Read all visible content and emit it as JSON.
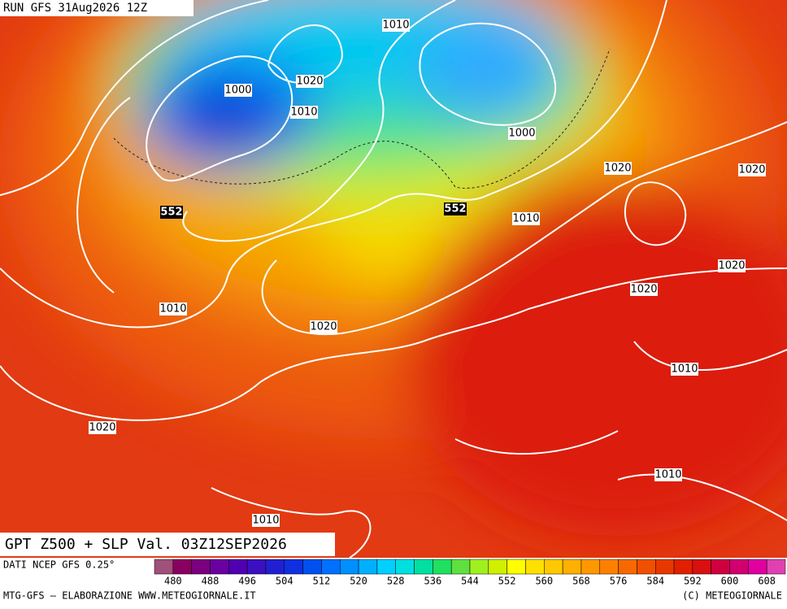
{
  "header": {
    "run": "RUN GFS 31Aug2026 12Z"
  },
  "map": {
    "title": "GPT Z500 + SLP Val. 03Z12SEP2026",
    "isobar_labels": [
      "1010",
      "1020",
      "1000",
      "1010",
      "1000",
      "1020",
      "1020",
      "1010",
      "1020",
      "1020",
      "1010",
      "1020",
      "1010",
      "1020",
      "1010",
      "1010"
    ],
    "height_labels": [
      "552",
      "552"
    ]
  },
  "colorbar": {
    "source": "DATI NCEP GFS 0.25°",
    "labels": [
      "480",
      "488",
      "496",
      "504",
      "512",
      "520",
      "528",
      "536",
      "544",
      "552",
      "560",
      "568",
      "576",
      "584",
      "592",
      "600",
      "608"
    ],
    "colors": [
      "#a0507a",
      "#8a0060",
      "#7a0080",
      "#6a00a0",
      "#5000b0",
      "#3a10c0",
      "#2020d0",
      "#1030e0",
      "#0050f0",
      "#0070ff",
      "#0090ff",
      "#00b0ff",
      "#00d0ff",
      "#00e0e0",
      "#00e0a0",
      "#20e060",
      "#60e040",
      "#a0f020",
      "#d0f000",
      "#ffff00",
      "#ffe000",
      "#ffc800",
      "#ffb000",
      "#ff9800",
      "#ff8000",
      "#f86800",
      "#f05000",
      "#e83800",
      "#e02000",
      "#d81010",
      "#d00040",
      "#d00070",
      "#e000a0",
      "#e040b0"
    ]
  },
  "footer": {
    "left": "MTG-GFS — ELABORAZIONE WWW.METEOGIORNALE.IT",
    "right": "(C) METEOGIORNALE"
  }
}
